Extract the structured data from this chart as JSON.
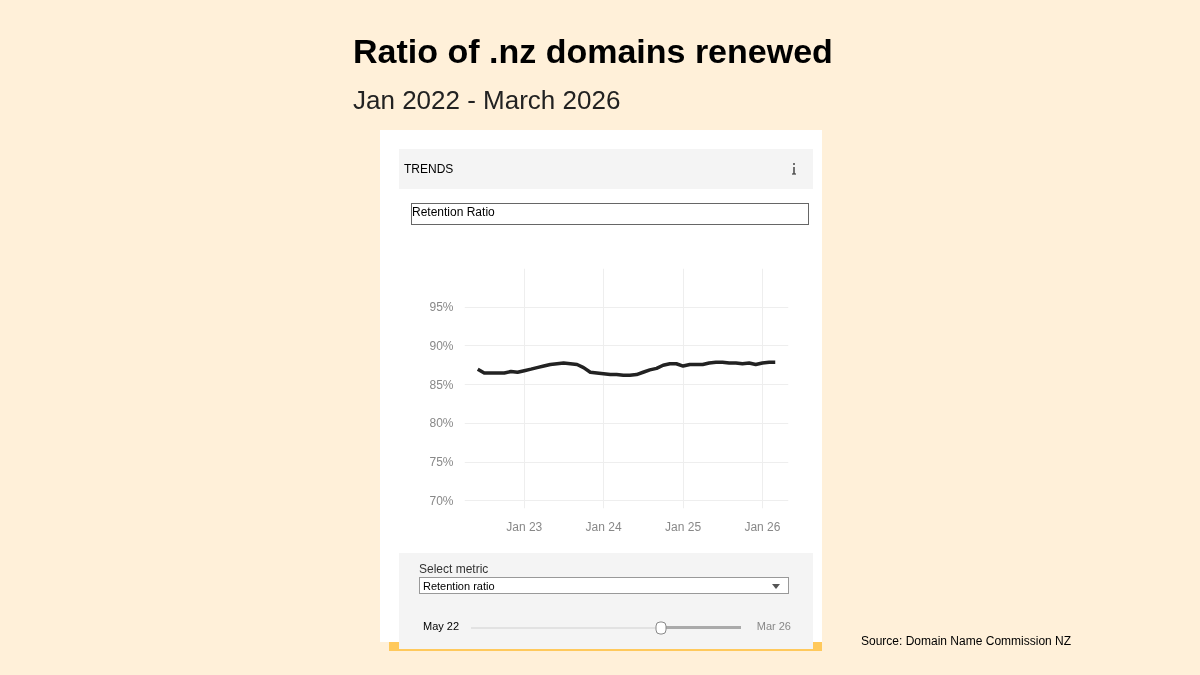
{
  "chart_data": {
    "type": "line",
    "title": "Ratio of .nz domains renewed",
    "subtitle": "Jan 2022 - March 2026",
    "annotations": [
      "TRENDS",
      "Retention Ratio",
      "Select metric",
      "Retention ratio",
      "May 22",
      "Mar 26",
      "Source: Domain Name Commission NZ"
    ],
    "x": [
      "2022-06",
      "2022-07",
      "2022-08",
      "2022-09",
      "2022-10",
      "2022-11",
      "2022-12",
      "2023-01",
      "2023-02",
      "2023-03",
      "2023-04",
      "2023-05",
      "2023-06",
      "2023-07",
      "2023-08",
      "2023-09",
      "2023-10",
      "2023-11",
      "2023-12",
      "2024-01",
      "2024-02",
      "2024-03",
      "2024-04",
      "2024-05",
      "2024-06",
      "2024-07",
      "2024-08",
      "2024-09",
      "2024-10",
      "2024-11",
      "2024-12",
      "2025-01",
      "2025-02",
      "2025-03",
      "2025-04",
      "2025-05",
      "2025-06",
      "2025-07",
      "2025-08",
      "2025-09",
      "2025-10",
      "2025-11",
      "2025-12",
      "2026-01",
      "2026-02",
      "2026-03"
    ],
    "series": [
      {
        "color": "#222222",
        "values": [
          87.0,
          86.5,
          86.5,
          86.5,
          86.5,
          86.7,
          86.6,
          86.8,
          87.0,
          87.2,
          87.4,
          87.6,
          87.7,
          87.8,
          87.7,
          87.6,
          87.2,
          86.6,
          86.5,
          86.4,
          86.3,
          86.3,
          86.2,
          86.2,
          86.3,
          86.6,
          86.9,
          87.1,
          87.5,
          87.7,
          87.7,
          87.4,
          87.6,
          87.6,
          87.6,
          87.8,
          87.9,
          87.9,
          87.8,
          87.8,
          87.7,
          87.8,
          87.6,
          87.8,
          87.9,
          87.9
        ]
      }
    ],
    "xlim": [
      "2022-04",
      "2026-05"
    ],
    "xticks": [
      {
        "value": "2023-01",
        "label": "Jan 23"
      },
      {
        "value": "2024-01",
        "label": "Jan 24"
      },
      {
        "value": "2025-01",
        "label": "Jan 25"
      },
      {
        "value": "2026-01",
        "label": "Jan 26"
      }
    ],
    "ylim": [
      69,
      100
    ],
    "yticks": [
      {
        "value": 70,
        "label": "70%"
      },
      {
        "value": 75,
        "label": "75%"
      },
      {
        "value": 80,
        "label": "80%"
      },
      {
        "value": 85,
        "label": "85%"
      },
      {
        "value": 90,
        "label": "90%"
      },
      {
        "value": 95,
        "label": "95%"
      }
    ],
    "grid": true,
    "marker": "none",
    "line_style": "solid"
  }
}
